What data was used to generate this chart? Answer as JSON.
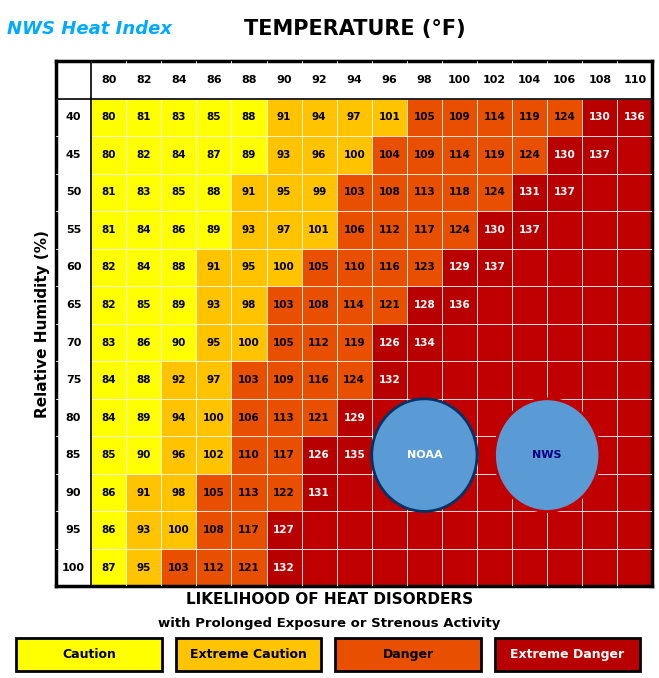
{
  "title_nws": "NWS Heat Index",
  "title_temp": "TEMPERATURE (°F)",
  "ylabel": "Relative Humidity (%)",
  "xlabel1": "LIKELIHOOD OF HEAT DISORDERS",
  "xlabel2": "with Prolonged Exposure or Strenous Activity",
  "temp_cols": [
    80,
    82,
    84,
    86,
    88,
    90,
    92,
    94,
    96,
    98,
    100,
    102,
    104,
    106,
    108,
    110
  ],
  "humidity_rows": [
    40,
    45,
    50,
    55,
    60,
    65,
    70,
    75,
    80,
    85,
    90,
    95,
    100
  ],
  "heat_index": [
    [
      80,
      81,
      83,
      85,
      88,
      91,
      94,
      97,
      101,
      105,
      109,
      114,
      119,
      124,
      130,
      136
    ],
    [
      80,
      82,
      84,
      87,
      89,
      93,
      96,
      100,
      104,
      109,
      114,
      119,
      124,
      130,
      137,
      null
    ],
    [
      81,
      83,
      85,
      88,
      91,
      95,
      99,
      103,
      108,
      113,
      118,
      124,
      131,
      137,
      null,
      null
    ],
    [
      81,
      84,
      86,
      89,
      93,
      97,
      101,
      106,
      112,
      117,
      124,
      130,
      137,
      null,
      null,
      null
    ],
    [
      82,
      84,
      88,
      91,
      95,
      100,
      105,
      110,
      116,
      123,
      129,
      137,
      null,
      null,
      null,
      null
    ],
    [
      82,
      85,
      89,
      93,
      98,
      103,
      108,
      114,
      121,
      128,
      136,
      null,
      null,
      null,
      null,
      null
    ],
    [
      83,
      86,
      90,
      95,
      100,
      105,
      112,
      119,
      126,
      134,
      null,
      null,
      null,
      null,
      null,
      null
    ],
    [
      84,
      88,
      92,
      97,
      103,
      109,
      116,
      124,
      132,
      null,
      null,
      null,
      null,
      null,
      null,
      null
    ],
    [
      84,
      89,
      94,
      100,
      106,
      113,
      121,
      129,
      null,
      null,
      null,
      null,
      null,
      null,
      null,
      null
    ],
    [
      85,
      90,
      96,
      102,
      110,
      117,
      126,
      135,
      null,
      null,
      null,
      null,
      null,
      null,
      null,
      null
    ],
    [
      86,
      91,
      98,
      105,
      113,
      122,
      131,
      null,
      null,
      null,
      null,
      null,
      null,
      null,
      null,
      null
    ],
    [
      86,
      93,
      100,
      108,
      117,
      127,
      null,
      null,
      null,
      null,
      null,
      null,
      null,
      null,
      null,
      null
    ],
    [
      87,
      95,
      103,
      112,
      121,
      132,
      null,
      null,
      null,
      null,
      null,
      null,
      null,
      null,
      null,
      null
    ]
  ],
  "color_caution": "#FFFF00",
  "color_extreme_caution": "#FFC300",
  "color_danger": "#E85000",
  "color_extreme_danger": "#B80000",
  "color_bg_red": "#C00000",
  "color_border": "#000000",
  "bg_color": "#FFFFFF",
  "legend_items": [
    {
      "label": "Caution",
      "color": "#FFFF00",
      "text_color": "#000000"
    },
    {
      "label": "Extreme Caution",
      "color": "#FFC300",
      "text_color": "#000000"
    },
    {
      "label": "Danger",
      "color": "#E85000",
      "text_color": "#000000"
    },
    {
      "label": "Extreme Danger",
      "color": "#B80000",
      "text_color": "#FFFFFF"
    }
  ]
}
